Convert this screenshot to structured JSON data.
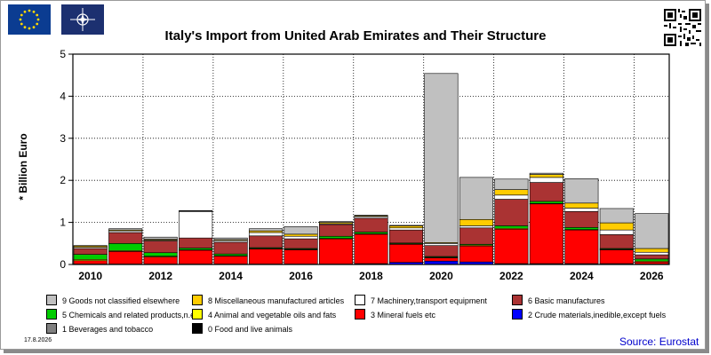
{
  "header": {
    "title": "Italy's Import from United Arab Emirates and Their Structure",
    "y_axis_label": "* Billion Euro"
  },
  "footer": {
    "date": "17.8.2026",
    "source": "Source: Eurostat"
  },
  "chart_data": {
    "type": "bar",
    "stacked": true,
    "title": "Italy's Import from United Arab Emirates and Their Structure",
    "ylabel": "* Billion Euro",
    "ylim": [
      0,
      5
    ],
    "yticks": [
      0,
      1,
      2,
      3,
      4,
      5
    ],
    "categories": [
      "2010",
      "2011",
      "2012",
      "2013",
      "2014",
      "2015",
      "2016",
      "2017",
      "2018",
      "2019",
      "2020",
      "2021",
      "2022",
      "2023",
      "2024",
      "2025",
      "2026"
    ],
    "x_tick_labels": [
      "2010",
      "2012",
      "2014",
      "2016",
      "2018",
      "2020",
      "2022",
      "2024",
      "2026"
    ],
    "grid": "horizontal",
    "series": [
      {
        "name": "0 Food and live animals",
        "color": "#000000",
        "values": [
          0,
          0,
          0,
          0,
          0,
          0,
          0,
          0,
          0,
          0,
          0,
          0,
          0,
          0,
          0,
          0,
          0
        ]
      },
      {
        "name": "1 Beverages and tobacco",
        "color": "#808080",
        "values": [
          0,
          0,
          0,
          0,
          0,
          0,
          0,
          0,
          0,
          0,
          0,
          0,
          0,
          0,
          0,
          0,
          0
        ]
      },
      {
        "name": "2 Crude materials,inedible,except fuels",
        "color": "#0000ff",
        "values": [
          0.01,
          0.01,
          0.01,
          0.01,
          0.01,
          0.01,
          0.01,
          0.01,
          0.02,
          0.05,
          0.08,
          0.06,
          0.02,
          0.02,
          0.02,
          0.02,
          0.01
        ]
      },
      {
        "name": "3 Mineral fuels etc",
        "color": "#ff0000",
        "values": [
          0.08,
          0.3,
          0.17,
          0.33,
          0.19,
          0.36,
          0.34,
          0.6,
          0.7,
          0.43,
          0.08,
          0.38,
          0.82,
          1.42,
          0.8,
          0.33,
          0.05
        ]
      },
      {
        "name": "4 Animal and vegetable oils and fats",
        "color": "#ffff00",
        "values": [
          0.03,
          0.02,
          0.02,
          0.01,
          0.01,
          0.01,
          0.01,
          0.01,
          0.01,
          0.01,
          0.01,
          0.02,
          0.02,
          0.01,
          0.01,
          0.01,
          0.02
        ]
      },
      {
        "name": "5 Chemicals and related products,n.e.s.",
        "color": "#00cc00",
        "values": [
          0.12,
          0.17,
          0.08,
          0.04,
          0.04,
          0.02,
          0.02,
          0.05,
          0.04,
          0.02,
          0.02,
          0.02,
          0.06,
          0.05,
          0.05,
          0.02,
          0.05
        ]
      },
      {
        "name": "6 Basic manufactures",
        "color": "#aa3333",
        "values": [
          0.14,
          0.26,
          0.28,
          0.24,
          0.28,
          0.28,
          0.23,
          0.28,
          0.33,
          0.31,
          0.26,
          0.39,
          0.63,
          0.45,
          0.38,
          0.33,
          0.1
        ]
      },
      {
        "name": "7 Machinery,transport equipment",
        "color": "#ffffff",
        "values": [
          0.03,
          0.04,
          0.02,
          0.63,
          0.04,
          0.08,
          0.06,
          0.02,
          0.04,
          0.05,
          0.05,
          0.05,
          0.1,
          0.12,
          0.08,
          0.11,
          0.06
        ]
      },
      {
        "name": "8 Miscellaneous manufactured articles",
        "color": "#ffcc00",
        "values": [
          0.03,
          0.02,
          0.02,
          0.01,
          0.02,
          0.04,
          0.05,
          0.03,
          0.02,
          0.05,
          0.02,
          0.15,
          0.13,
          0.07,
          0.12,
          0.17,
          0.09
        ]
      },
      {
        "name": "9 Goods not classified elsewhere",
        "color": "#c0c0c0",
        "values": [
          0.01,
          0.03,
          0.05,
          0.01,
          0.04,
          0.05,
          0.18,
          0.02,
          0.01,
          0.01,
          4.02,
          1.0,
          0.25,
          0.03,
          0.58,
          0.34,
          0.83
        ]
      }
    ]
  }
}
